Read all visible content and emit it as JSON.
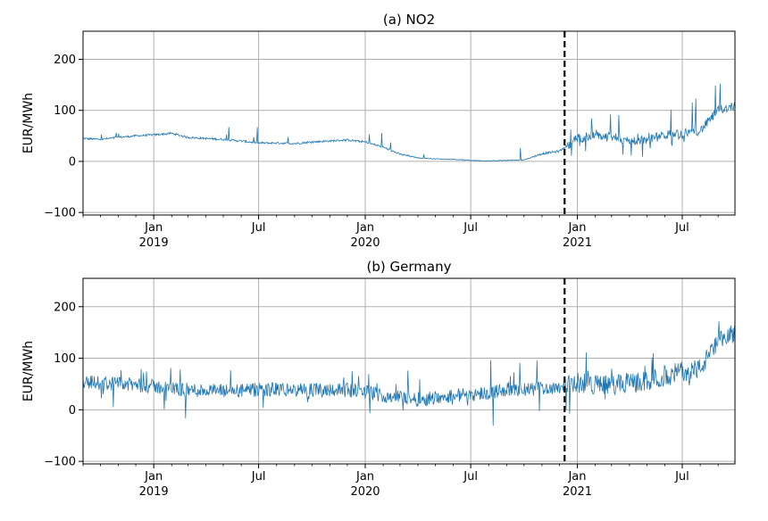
{
  "chart_data": [
    {
      "type": "line",
      "title": "(a) NO2",
      "ylabel": "EUR/MWh",
      "xlabel": "",
      "ylim": [
        -105,
        255
      ],
      "xlim": [
        "2018-09-01",
        "2021-09-30"
      ],
      "yticks": [
        -100,
        0,
        100,
        200
      ],
      "xticks": [
        {
          "date": "2019-01-01",
          "label": "Jan",
          "year": "2019"
        },
        {
          "date": "2019-07-01",
          "label": "Jul",
          "year": ""
        },
        {
          "date": "2020-01-01",
          "label": "Jan",
          "year": "2020"
        },
        {
          "date": "2020-07-01",
          "label": "Jul",
          "year": ""
        },
        {
          "date": "2021-01-01",
          "label": "Jan",
          "year": "2021"
        },
        {
          "date": "2021-07-01",
          "label": "Jul",
          "year": ""
        }
      ],
      "vline_date": "2020-12-10",
      "grid": true,
      "series_color": "#1f77b4",
      "series": [
        {
          "x": [
            "2018-09-01",
            "2018-10-01",
            "2018-11-01",
            "2018-12-01",
            "2019-01-01",
            "2019-02-01",
            "2019-03-01",
            "2019-04-01",
            "2019-05-01",
            "2019-06-01",
            "2019-07-01",
            "2019-08-01",
            "2019-09-01",
            "2019-10-01",
            "2019-11-01",
            "2019-12-01",
            "2020-01-01",
            "2020-02-01",
            "2020-03-01",
            "2020-04-01",
            "2020-05-01",
            "2020-06-01",
            "2020-07-01",
            "2020-08-01",
            "2020-09-01",
            "2020-10-01",
            "2020-11-01",
            "2020-12-01",
            "2021-01-01",
            "2021-02-01",
            "2021-03-01",
            "2021-04-01",
            "2021-05-01",
            "2021-06-01",
            "2021-07-01",
            "2021-08-01",
            "2021-09-01",
            "2021-09-30"
          ],
          "values": [
            45,
            43,
            47,
            50,
            52,
            55,
            47,
            45,
            43,
            40,
            36,
            36,
            35,
            38,
            40,
            42,
            38,
            28,
            14,
            7,
            5,
            4,
            2,
            1,
            2,
            3,
            15,
            20,
            45,
            50,
            48,
            40,
            42,
            52,
            55,
            60,
            100,
            110
          ]
        }
      ]
    },
    {
      "type": "line",
      "title": "(b) Germany",
      "ylabel": "EUR/MWh",
      "xlabel": "",
      "ylim": [
        -105,
        255
      ],
      "xlim": [
        "2018-09-01",
        "2021-09-30"
      ],
      "yticks": [
        -100,
        0,
        100,
        200
      ],
      "xticks": [
        {
          "date": "2019-01-01",
          "label": "Jan",
          "year": "2019"
        },
        {
          "date": "2019-07-01",
          "label": "Jul",
          "year": ""
        },
        {
          "date": "2020-01-01",
          "label": "Jan",
          "year": "2020"
        },
        {
          "date": "2020-07-01",
          "label": "Jul",
          "year": ""
        },
        {
          "date": "2021-01-01",
          "label": "Jan",
          "year": "2021"
        },
        {
          "date": "2021-07-01",
          "label": "Jul",
          "year": ""
        }
      ],
      "vline_date": "2020-12-10",
      "grid": true,
      "series_color": "#1f77b4",
      "series": [
        {
          "x": [
            "2018-09-01",
            "2018-10-01",
            "2018-11-01",
            "2018-12-01",
            "2019-01-01",
            "2019-02-01",
            "2019-03-01",
            "2019-04-01",
            "2019-05-01",
            "2019-06-01",
            "2019-07-01",
            "2019-08-01",
            "2019-09-01",
            "2019-10-01",
            "2019-11-01",
            "2019-12-01",
            "2020-01-01",
            "2020-02-01",
            "2020-03-01",
            "2020-04-01",
            "2020-05-01",
            "2020-06-01",
            "2020-07-01",
            "2020-08-01",
            "2020-09-01",
            "2020-10-01",
            "2020-11-01",
            "2020-12-01",
            "2021-01-01",
            "2021-02-01",
            "2021-03-01",
            "2021-04-01",
            "2021-05-01",
            "2021-06-01",
            "2021-07-01",
            "2021-08-01",
            "2021-09-01",
            "2021-09-30"
          ],
          "values": [
            55,
            52,
            50,
            48,
            45,
            42,
            38,
            38,
            36,
            37,
            38,
            40,
            38,
            38,
            40,
            38,
            35,
            28,
            25,
            20,
            24,
            28,
            30,
            33,
            40,
            38,
            42,
            45,
            52,
            50,
            48,
            52,
            55,
            65,
            75,
            80,
            130,
            150
          ]
        }
      ]
    }
  ]
}
